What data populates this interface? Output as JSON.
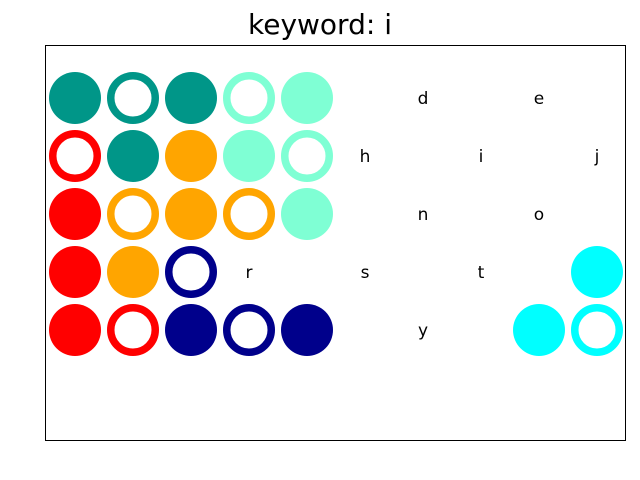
{
  "title": "keyword: i",
  "colors": {
    "teal": "#009688",
    "aquamarine": "#7fffd4",
    "red": "#ff0000",
    "orange": "#ffa500",
    "navy": "#00008b",
    "cyan": "#00ffff",
    "frame": "#000000",
    "text": "#000000"
  },
  "grid": {
    "rows": 5,
    "cols": 10,
    "cells": [
      [
        {
          "kind": "disc",
          "color": "teal"
        },
        {
          "kind": "ring",
          "color": "teal"
        },
        {
          "kind": "disc",
          "color": "teal"
        },
        {
          "kind": "ring",
          "color": "aquamarine"
        },
        {
          "kind": "disc",
          "color": "aquamarine"
        },
        null,
        {
          "kind": "letter",
          "text": "d"
        },
        null,
        {
          "kind": "letter",
          "text": "e"
        },
        null
      ],
      [
        {
          "kind": "ring",
          "color": "red"
        },
        {
          "kind": "disc",
          "color": "teal"
        },
        {
          "kind": "disc",
          "color": "orange"
        },
        {
          "kind": "disc",
          "color": "aquamarine"
        },
        {
          "kind": "ring",
          "color": "aquamarine"
        },
        {
          "kind": "letter",
          "text": "h"
        },
        null,
        {
          "kind": "letter",
          "text": "i"
        },
        null,
        {
          "kind": "letter",
          "text": "j"
        }
      ],
      [
        {
          "kind": "disc",
          "color": "red"
        },
        {
          "kind": "ring",
          "color": "orange"
        },
        {
          "kind": "disc",
          "color": "orange"
        },
        {
          "kind": "ring",
          "color": "orange"
        },
        {
          "kind": "disc",
          "color": "aquamarine"
        },
        null,
        {
          "kind": "letter",
          "text": "n"
        },
        null,
        {
          "kind": "letter",
          "text": "o"
        },
        null
      ],
      [
        {
          "kind": "disc",
          "color": "red"
        },
        {
          "kind": "disc",
          "color": "orange"
        },
        {
          "kind": "ring",
          "color": "navy"
        },
        {
          "kind": "letter",
          "text": "r"
        },
        null,
        {
          "kind": "letter",
          "text": "s"
        },
        null,
        {
          "kind": "letter",
          "text": "t"
        },
        null,
        {
          "kind": "disc",
          "color": "cyan"
        }
      ],
      [
        {
          "kind": "disc",
          "color": "red"
        },
        {
          "kind": "ring",
          "color": "red"
        },
        {
          "kind": "disc",
          "color": "navy"
        },
        {
          "kind": "ring",
          "color": "navy"
        },
        {
          "kind": "disc",
          "color": "navy"
        },
        null,
        {
          "kind": "letter",
          "text": "y"
        },
        null,
        {
          "kind": "disc",
          "color": "cyan"
        },
        {
          "kind": "ring",
          "color": "cyan"
        }
      ]
    ]
  }
}
